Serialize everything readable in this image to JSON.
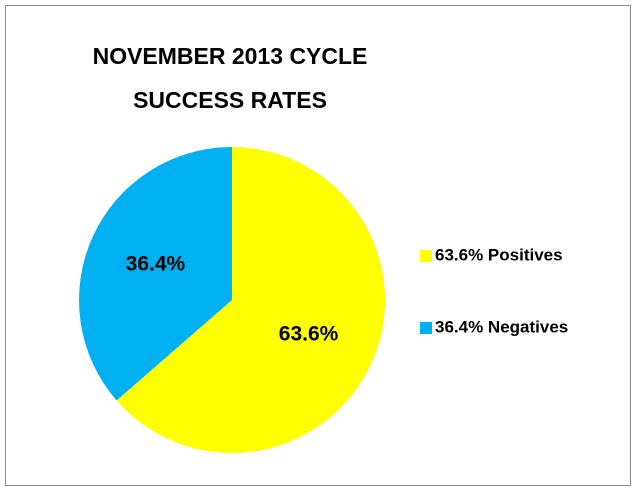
{
  "chart_data": {
    "type": "pie",
    "title": "NOVEMBER 2013 CYCLE SUCCESS RATES",
    "categories": [
      "63.6% Positives",
      "36.4% Negatives"
    ],
    "values": [
      63.6,
      36.4
    ],
    "value_labels": [
      "63.6%",
      "36.4%"
    ],
    "colors": [
      "#ffff00",
      "#00b0f0"
    ],
    "legend": "right"
  }
}
